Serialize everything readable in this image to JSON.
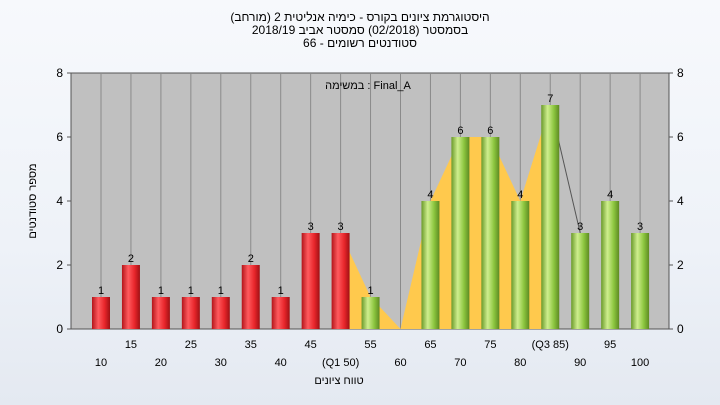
{
  "chart_data": {
    "type": "bar",
    "title": [
      "(היסטוגרמת ציונים בקורס - כימיה אנליטית 2 (מורחב",
      "בסמסטר  (02/2018)  סמסטר אביב 2018/19",
      "סטודנטים רשומים - 66"
    ],
    "annotation": "במשימה : Final_A",
    "xlabel": "טווח ציונים",
    "ylabel": "מספר סטודנטים",
    "ylim": [
      0,
      8
    ],
    "yticks": [
      0,
      2,
      4,
      6,
      8
    ],
    "categories": [
      "10",
      "15",
      "20",
      "25",
      "30",
      "35",
      "40",
      "45",
      "(Q1 50)",
      "55",
      "60",
      "65",
      "70",
      "75",
      "80",
      "(Q3 85)",
      "90",
      "95",
      "100"
    ],
    "values": [
      1,
      2,
      1,
      1,
      1,
      2,
      1,
      3,
      3,
      1,
      0,
      4,
      6,
      6,
      4,
      7,
      3,
      4,
      3
    ],
    "bar_colors": [
      "red",
      "red",
      "red",
      "red",
      "red",
      "red",
      "red",
      "red",
      "red",
      "green",
      "green",
      "green",
      "green",
      "green",
      "green",
      "green",
      "green",
      "green",
      "green"
    ],
    "interquartile_band": {
      "from": "(Q1 50)",
      "to": "(Q3 85)"
    },
    "grid": "vertical",
    "colors": {
      "plot_bg": "#c0c0c0",
      "red_bar": "#e8262b",
      "green_bar": "#8cc63f",
      "band": "#ffc94d"
    }
  }
}
